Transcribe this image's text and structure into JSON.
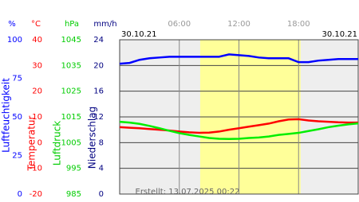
{
  "chart_data": {
    "type": "line",
    "dates": [
      "30.10.21",
      "30.10.21"
    ],
    "footer": "Erstellt: 13.07.2025 00:22",
    "xlim": [
      0,
      24
    ],
    "xticks": [
      {
        "value": 6,
        "label": "06:00"
      },
      {
        "value": 12,
        "label": "12:00"
      },
      {
        "value": 18,
        "label": "18:00"
      }
    ],
    "daylight": [
      8.1,
      18.2
    ],
    "daylight_color": "#ffff99",
    "axes": [
      {
        "unit": "%",
        "label": "Luftfeuchtigkeit",
        "color": "#0000ff",
        "lim": [
          0,
          100
        ],
        "ticks": [
          0,
          25,
          50,
          75,
          100
        ]
      },
      {
        "unit": "°C",
        "label": "Temperatur",
        "color": "#ff0000",
        "lim": [
          -20,
          40
        ],
        "ticks": [
          -20,
          -10,
          0,
          10,
          20,
          30,
          40
        ]
      },
      {
        "unit": "hPa",
        "label": "Luftdruck",
        "color": "#00cc00",
        "lim": [
          985,
          1045
        ],
        "ticks": [
          985,
          995,
          1005,
          1015,
          1025,
          1035,
          1045
        ]
      },
      {
        "unit": "mm/h",
        "label": "Niederschlag",
        "color": "#000080",
        "lim": [
          0,
          24
        ],
        "ticks": [
          0,
          4,
          8,
          12,
          16,
          20,
          24
        ],
        "grid": true
      }
    ],
    "x": [
      0,
      1,
      2,
      3,
      4,
      5,
      6,
      7,
      8,
      9,
      10,
      11,
      12,
      13,
      14,
      15,
      16,
      17,
      18,
      19,
      20,
      21,
      22,
      23,
      24
    ],
    "series": [
      {
        "axis": 0,
        "color": "#0000ff",
        "values": [
          84.5,
          85,
          87,
          88,
          88.5,
          89,
          89,
          89,
          89,
          89,
          89,
          90.5,
          90,
          89.5,
          88.5,
          88,
          88,
          88,
          85.5,
          85.5,
          86.5,
          87,
          87.5,
          87.5,
          87.5
        ]
      },
      {
        "axis": 1,
        "color": "#ff0000",
        "values": [
          6.0,
          5.8,
          5.6,
          5.3,
          5.0,
          4.7,
          4.3,
          4.0,
          3.8,
          3.9,
          4.3,
          5.0,
          5.6,
          6.2,
          6.8,
          7.4,
          8.3,
          9.0,
          9.1,
          8.6,
          8.3,
          8.1,
          7.9,
          7.8,
          7.8
        ]
      },
      {
        "axis": 2,
        "color": "#00ee00",
        "values": [
          1013.1,
          1012.8,
          1012.3,
          1011.5,
          1010.6,
          1009.6,
          1008.7,
          1008.0,
          1007.4,
          1006.8,
          1006.5,
          1006.4,
          1006.5,
          1006.8,
          1007.0,
          1007.4,
          1008.0,
          1008.4,
          1008.8,
          1009.5,
          1010.2,
          1011.0,
          1011.6,
          1012.1,
          1012.5
        ]
      }
    ]
  }
}
